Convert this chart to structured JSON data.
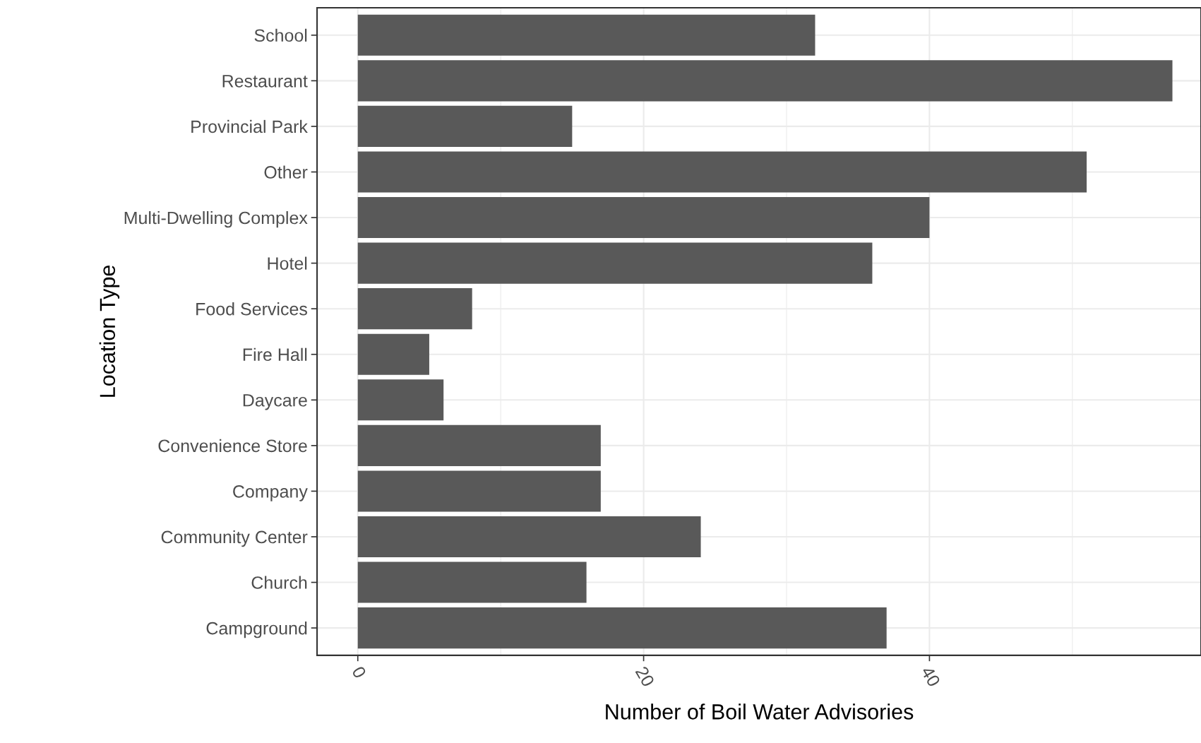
{
  "chart_data": {
    "type": "bar",
    "orientation": "horizontal",
    "xlabel": "Number of Boil Water Advisories",
    "ylabel": "Location Type",
    "categories": [
      "School",
      "Restaurant",
      "Provincial Park",
      "Other",
      "Multi-Dwelling Complex",
      "Hotel",
      "Food Services",
      "Fire Hall",
      "Daycare",
      "Convenience Store",
      "Company",
      "Community Center",
      "Church",
      "Campground"
    ],
    "values": [
      32,
      57,
      15,
      51,
      40,
      36,
      8,
      5,
      6,
      17,
      17,
      24,
      16,
      37
    ],
    "color": "#595959",
    "xlim": [
      -2.85,
      59
    ],
    "xticks": [
      0,
      20,
      40
    ],
    "grid": true
  }
}
